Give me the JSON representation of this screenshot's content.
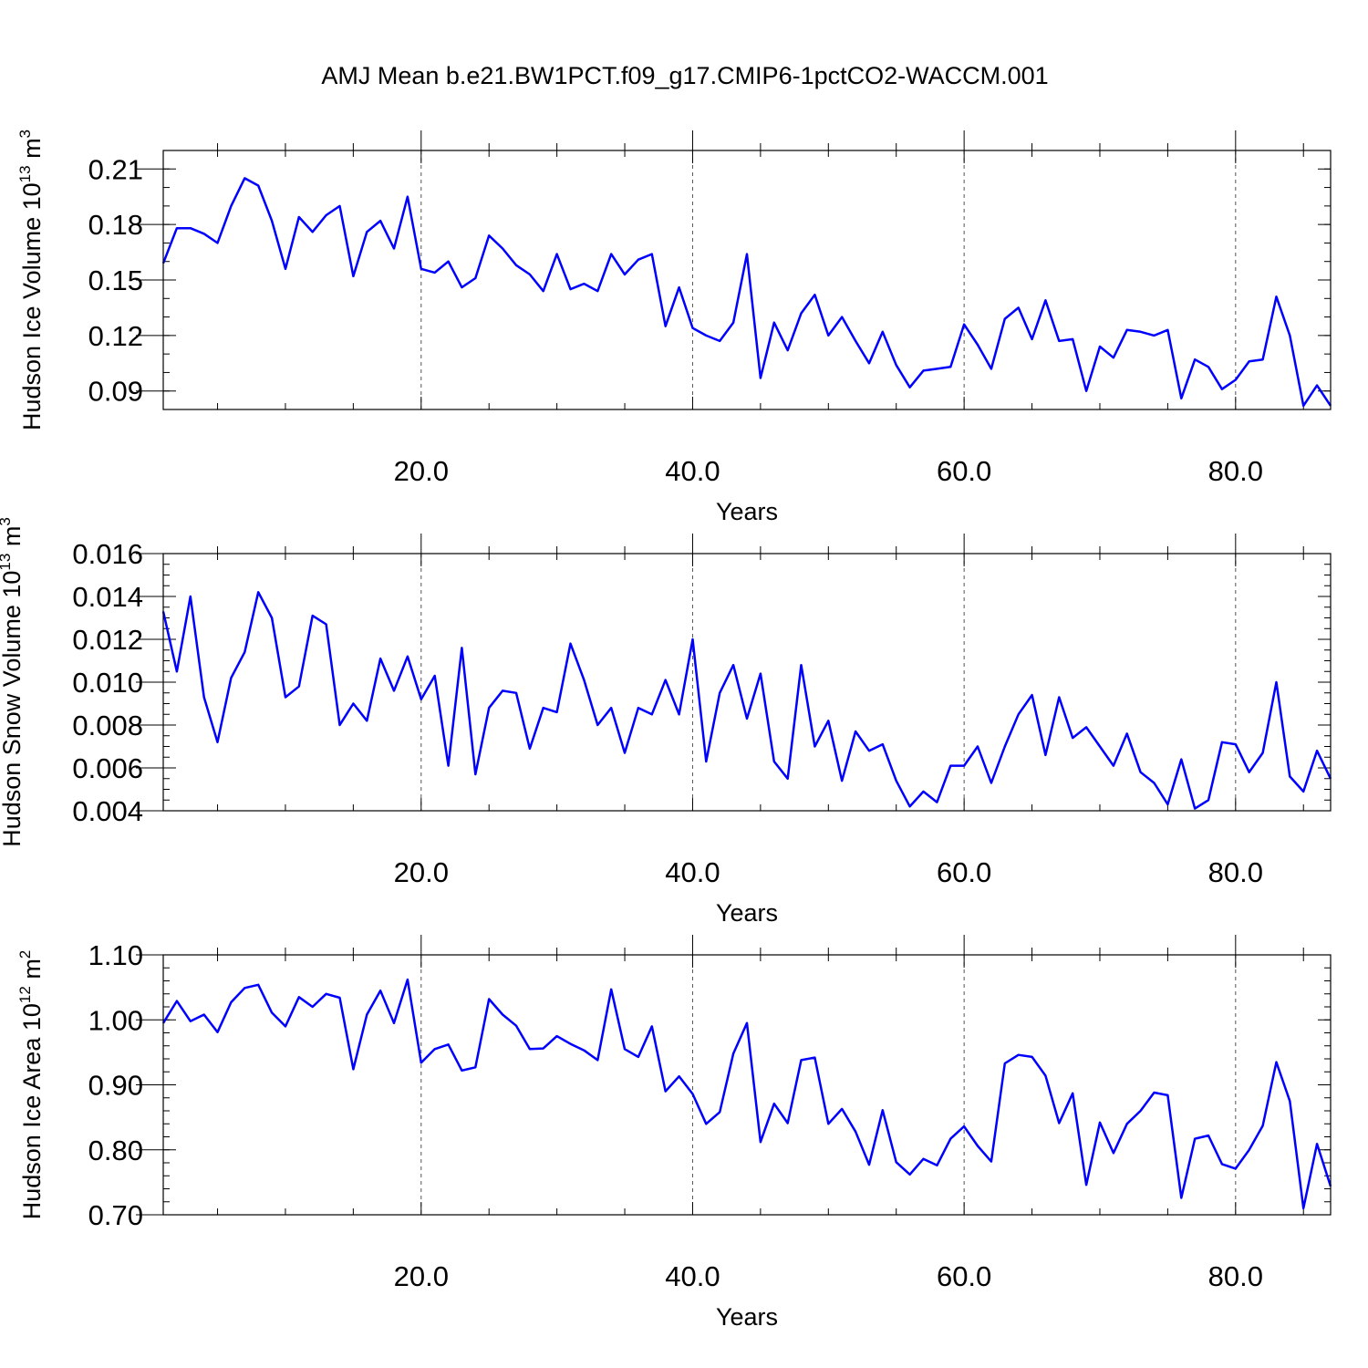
{
  "title": "AMJ Mean b.e21.BW1PCT.f09_g17.CMIP6-1pctCO2-WACCM.001",
  "line_color": "#0000ff",
  "chart_data": [
    {
      "type": "line",
      "ylabel": "Hudson Ice Volume 10",
      "ylabel_exp": "13",
      "ylabel_unit": "m",
      "ylabel_unit_exp": "3",
      "xlabel": "Years",
      "xlim": [
        1,
        87
      ],
      "ylim": [
        0.08,
        0.22
      ],
      "x_ticks": [
        20,
        40,
        60,
        80
      ],
      "x_tick_labels": [
        "20.0",
        "40.0",
        "60.0",
        "80.0"
      ],
      "y_ticks": [
        0.09,
        0.12,
        0.15,
        0.18,
        0.21
      ],
      "y_tick_labels": [
        "0.09",
        "0.12",
        "0.15",
        "0.18",
        "0.21"
      ],
      "y_minor_step": 0.01,
      "grid_x": true,
      "series": [
        {
          "x_start": 1,
          "values": [
            0.159,
            0.178,
            0.178,
            0.175,
            0.17,
            0.19,
            0.205,
            0.201,
            0.182,
            0.156,
            0.184,
            0.176,
            0.185,
            0.19,
            0.152,
            0.176,
            0.182,
            0.167,
            0.195,
            0.156,
            0.154,
            0.16,
            0.146,
            0.151,
            0.174,
            0.167,
            0.158,
            0.153,
            0.144,
            0.164,
            0.145,
            0.148,
            0.144,
            0.164,
            0.153,
            0.161,
            0.164,
            0.125,
            0.146,
            0.124,
            0.12,
            0.117,
            0.127,
            0.164,
            0.097,
            0.127,
            0.112,
            0.132,
            0.142,
            0.12,
            0.13,
            0.117,
            0.105,
            0.122,
            0.104,
            0.092,
            0.101,
            0.102,
            0.103,
            0.126,
            0.115,
            0.102,
            0.129,
            0.135,
            0.118,
            0.139,
            0.117,
            0.118,
            0.09,
            0.114,
            0.108,
            0.123,
            0.122,
            0.12,
            0.123,
            0.086,
            0.107,
            0.103,
            0.091,
            0.096,
            0.106,
            0.107,
            0.141,
            0.12,
            0.082,
            0.093,
            0.082
          ]
        }
      ]
    },
    {
      "type": "line",
      "ylabel": "Hudson Snow Volume 10",
      "ylabel_exp": "13",
      "ylabel_unit": "m",
      "ylabel_unit_exp": "3",
      "xlabel": "Years",
      "xlim": [
        1,
        87
      ],
      "ylim": [
        0.004,
        0.016
      ],
      "x_ticks": [
        20,
        40,
        60,
        80
      ],
      "x_tick_labels": [
        "20.0",
        "40.0",
        "60.0",
        "80.0"
      ],
      "y_ticks": [
        0.004,
        0.006,
        0.008,
        0.01,
        0.012,
        0.014,
        0.016
      ],
      "y_tick_labels": [
        "0.004",
        "0.006",
        "0.008",
        "0.010",
        "0.012",
        "0.014",
        "0.016"
      ],
      "y_minor_step": 0.0005,
      "grid_x": true,
      "series": [
        {
          "x_start": 1,
          "values": [
            0.0133,
            0.0105,
            0.014,
            0.0093,
            0.0072,
            0.0102,
            0.0114,
            0.0142,
            0.013,
            0.0093,
            0.0098,
            0.0131,
            0.0127,
            0.008,
            0.009,
            0.0082,
            0.0111,
            0.0096,
            0.0112,
            0.0092,
            0.0103,
            0.0061,
            0.0116,
            0.0057,
            0.0088,
            0.0096,
            0.0095,
            0.0069,
            0.0088,
            0.0086,
            0.0118,
            0.0101,
            0.008,
            0.0088,
            0.0067,
            0.0088,
            0.0085,
            0.0101,
            0.0085,
            0.012,
            0.0063,
            0.0095,
            0.0108,
            0.0083,
            0.0104,
            0.0063,
            0.0055,
            0.0108,
            0.007,
            0.0082,
            0.0054,
            0.0077,
            0.0068,
            0.0071,
            0.0054,
            0.0042,
            0.0049,
            0.0044,
            0.0061,
            0.0061,
            0.007,
            0.0053,
            0.007,
            0.0085,
            0.0094,
            0.0066,
            0.0093,
            0.0074,
            0.0079,
            0.007,
            0.0061,
            0.0076,
            0.0058,
            0.0053,
            0.0043,
            0.0064,
            0.0041,
            0.0045,
            0.0072,
            0.0071,
            0.0058,
            0.0067,
            0.01,
            0.0056,
            0.0049,
            0.0068,
            0.0055
          ]
        }
      ]
    },
    {
      "type": "line",
      "ylabel": "Hudson Ice Area 10",
      "ylabel_exp": "12",
      "ylabel_unit": "m",
      "ylabel_unit_exp": "2",
      "xlabel": "Years",
      "xlim": [
        1,
        87
      ],
      "ylim": [
        0.7,
        1.1
      ],
      "x_ticks": [
        20,
        40,
        60,
        80
      ],
      "x_tick_labels": [
        "20.0",
        "40.0",
        "60.0",
        "80.0"
      ],
      "y_ticks": [
        0.7,
        0.8,
        0.9,
        1.0,
        1.1
      ],
      "y_tick_labels": [
        "0.70",
        "0.80",
        "0.90",
        "1.00",
        "1.10"
      ],
      "y_minor_step": 0.02,
      "grid_x": true,
      "series": [
        {
          "x_start": 1,
          "values": [
            0.995,
            1.029,
            0.998,
            1.008,
            0.981,
            1.027,
            1.049,
            1.054,
            1.011,
            0.99,
            1.035,
            1.02,
            1.04,
            1.034,
            0.924,
            1.008,
            1.045,
            0.995,
            1.062,
            0.934,
            0.955,
            0.962,
            0.922,
            0.927,
            1.032,
            1.008,
            0.991,
            0.955,
            0.956,
            0.975,
            0.963,
            0.953,
            0.938,
            1.047,
            0.955,
            0.943,
            0.99,
            0.89,
            0.913,
            0.886,
            0.84,
            0.858,
            0.948,
            0.995,
            0.812,
            0.871,
            0.841,
            0.938,
            0.942,
            0.84,
            0.863,
            0.828,
            0.777,
            0.861,
            0.781,
            0.762,
            0.786,
            0.776,
            0.817,
            0.836,
            0.806,
            0.782,
            0.933,
            0.946,
            0.943,
            0.914,
            0.841,
            0.887,
            0.746,
            0.842,
            0.795,
            0.84,
            0.86,
            0.888,
            0.884,
            0.726,
            0.817,
            0.822,
            0.778,
            0.771,
            0.8,
            0.837,
            0.935,
            0.875,
            0.71,
            0.809,
            0.744
          ]
        }
      ]
    }
  ]
}
